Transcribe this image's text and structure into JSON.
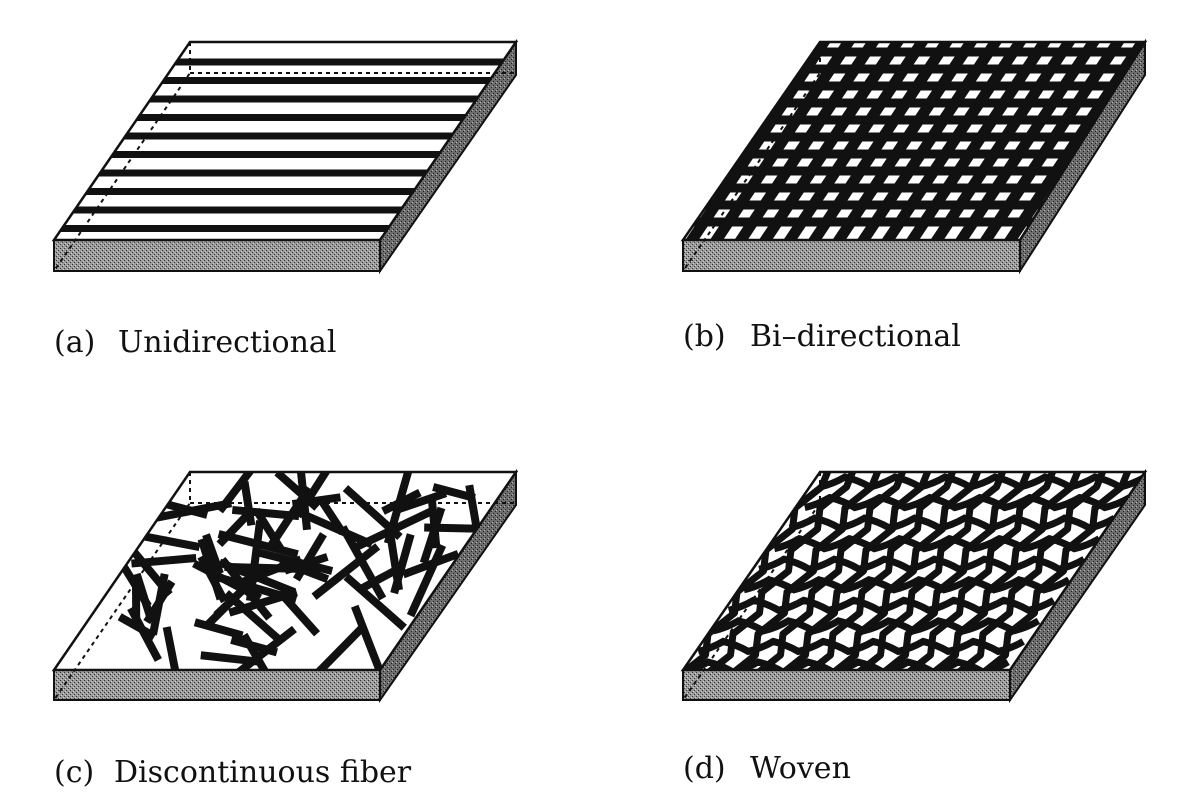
{
  "panels": [
    {
      "id": "a",
      "letter": "(a)",
      "caption": "Unidirectional",
      "pattern": "unidirectional"
    },
    {
      "id": "b",
      "letter": "(b)",
      "caption": "Bi–directional",
      "pattern": "bidirectional"
    },
    {
      "id": "c",
      "letter": "(c)",
      "caption": "Discontinuous fiber",
      "pattern": "discontinuous"
    },
    {
      "id": "d",
      "letter": "(d)",
      "caption": "Woven",
      "pattern": "woven"
    }
  ],
  "colors": {
    "fiber": "#111111",
    "edge": "#111111",
    "fill": "#ffffff"
  }
}
